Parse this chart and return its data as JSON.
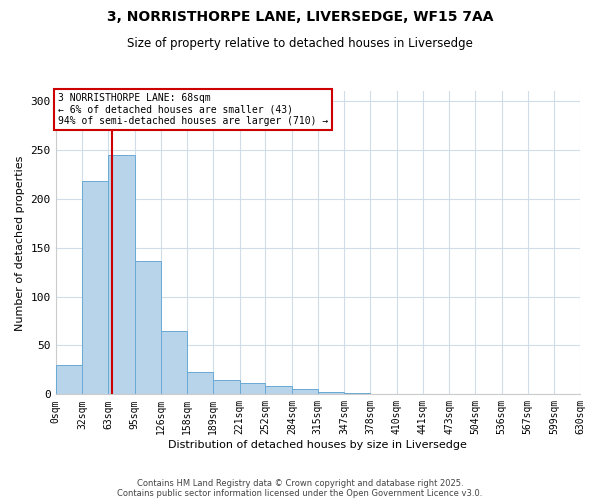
{
  "title": "3, NORRISTHORPE LANE, LIVERSEDGE, WF15 7AA",
  "subtitle": "Size of property relative to detached houses in Liversedge",
  "xlabel": "Distribution of detached houses by size in Liversedge",
  "ylabel": "Number of detached properties",
  "bar_color": "#b8d4eb",
  "bar_edge_color": "#6aaad4",
  "background_color": "#ffffff",
  "grid_color": "#d0dce8",
  "annotation_box_edge": "#cc0000",
  "vline_color": "#cc0000",
  "annotation_title": "3 NORRISTHORPE LANE: 68sqm",
  "annotation_line1": "← 6% of detached houses are smaller (43)",
  "annotation_line2": "94% of semi-detached houses are larger (710) →",
  "vline_x": 68,
  "bin_edges": [
    0,
    32,
    63,
    95,
    126,
    158,
    189,
    221,
    252,
    284,
    315,
    347,
    378,
    410,
    441,
    473,
    504,
    536,
    567,
    599,
    630
  ],
  "bin_counts": [
    30,
    218,
    245,
    136,
    65,
    23,
    15,
    12,
    9,
    5,
    2,
    1,
    0,
    0,
    0,
    0,
    0,
    0,
    0,
    0
  ],
  "xlim": [
    0,
    630
  ],
  "ylim": [
    0,
    310
  ],
  "xtick_labels": [
    "0sqm",
    "32sqm",
    "63sqm",
    "95sqm",
    "126sqm",
    "158sqm",
    "189sqm",
    "221sqm",
    "252sqm",
    "284sqm",
    "315sqm",
    "347sqm",
    "378sqm",
    "410sqm",
    "441sqm",
    "473sqm",
    "504sqm",
    "536sqm",
    "567sqm",
    "599sqm",
    "630sqm"
  ],
  "yticks": [
    0,
    50,
    100,
    150,
    200,
    250,
    300
  ],
  "footer1": "Contains HM Land Registry data © Crown copyright and database right 2025.",
  "footer2": "Contains public sector information licensed under the Open Government Licence v3.0."
}
